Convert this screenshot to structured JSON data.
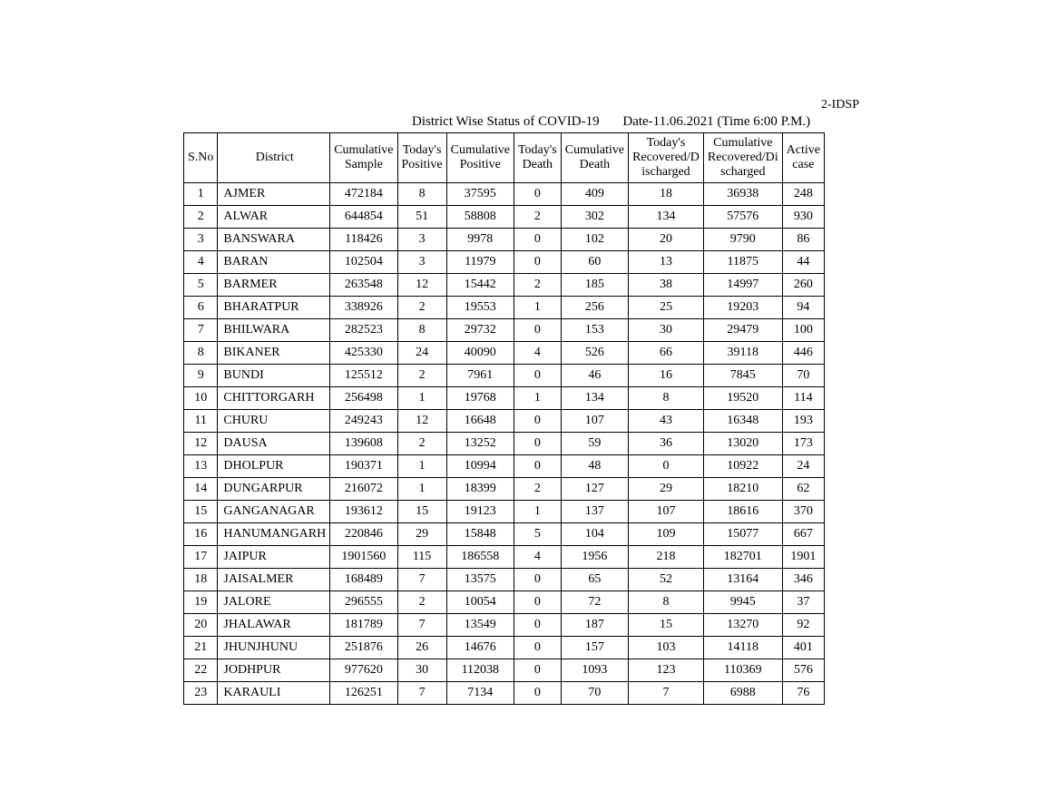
{
  "header": {
    "doc_id": "2-IDSP",
    "title": "District Wise Status of  COVID-19",
    "date_label": "Date-11.06.2021 (Time 6:00 P.M.)"
  },
  "table": {
    "columns": [
      "S.No",
      "District",
      "Cumulative Sample",
      "Today's Positive",
      "Cumulative Positive",
      "Today's Death",
      "Cumulative Death",
      "Today's Recovered/D ischarged",
      "Cumulative Recovered/Di scharged",
      "Active case"
    ],
    "rows": [
      [
        "1",
        "AJMER",
        "472184",
        "8",
        "37595",
        "0",
        "409",
        "18",
        "36938",
        "248"
      ],
      [
        "2",
        "ALWAR",
        "644854",
        "51",
        "58808",
        "2",
        "302",
        "134",
        "57576",
        "930"
      ],
      [
        "3",
        "BANSWARA",
        "118426",
        "3",
        "9978",
        "0",
        "102",
        "20",
        "9790",
        "86"
      ],
      [
        "4",
        "BARAN",
        "102504",
        "3",
        "11979",
        "0",
        "60",
        "13",
        "11875",
        "44"
      ],
      [
        "5",
        "BARMER",
        "263548",
        "12",
        "15442",
        "2",
        "185",
        "38",
        "14997",
        "260"
      ],
      [
        "6",
        "BHARATPUR",
        "338926",
        "2",
        "19553",
        "1",
        "256",
        "25",
        "19203",
        "94"
      ],
      [
        "7",
        "BHILWARA",
        "282523",
        "8",
        "29732",
        "0",
        "153",
        "30",
        "29479",
        "100"
      ],
      [
        "8",
        "BIKANER",
        "425330",
        "24",
        "40090",
        "4",
        "526",
        "66",
        "39118",
        "446"
      ],
      [
        "9",
        "BUNDI",
        "125512",
        "2",
        "7961",
        "0",
        "46",
        "16",
        "7845",
        "70"
      ],
      [
        "10",
        "CHITTORGARH",
        "256498",
        "1",
        "19768",
        "1",
        "134",
        "8",
        "19520",
        "114"
      ],
      [
        "11",
        "CHURU",
        "249243",
        "12",
        "16648",
        "0",
        "107",
        "43",
        "16348",
        "193"
      ],
      [
        "12",
        "DAUSA",
        "139608",
        "2",
        "13252",
        "0",
        "59",
        "36",
        "13020",
        "173"
      ],
      [
        "13",
        "DHOLPUR",
        "190371",
        "1",
        "10994",
        "0",
        "48",
        "0",
        "10922",
        "24"
      ],
      [
        "14",
        "DUNGARPUR",
        "216072",
        "1",
        "18399",
        "2",
        "127",
        "29",
        "18210",
        "62"
      ],
      [
        "15",
        "GANGANAGAR",
        "193612",
        "15",
        "19123",
        "1",
        "137",
        "107",
        "18616",
        "370"
      ],
      [
        "16",
        "HANUMANGARH",
        "220846",
        "29",
        "15848",
        "5",
        "104",
        "109",
        "15077",
        "667"
      ],
      [
        "17",
        "JAIPUR",
        "1901560",
        "115",
        "186558",
        "4",
        "1956",
        "218",
        "182701",
        "1901"
      ],
      [
        "18",
        "JAISALMER",
        "168489",
        "7",
        "13575",
        "0",
        "65",
        "52",
        "13164",
        "346"
      ],
      [
        "19",
        "JALORE",
        "296555",
        "2",
        "10054",
        "0",
        "72",
        "8",
        "9945",
        "37"
      ],
      [
        "20",
        "JHALAWAR",
        "181789",
        "7",
        "13549",
        "0",
        "187",
        "15",
        "13270",
        "92"
      ],
      [
        "21",
        "JHUNJHUNU",
        "251876",
        "26",
        "14676",
        "0",
        "157",
        "103",
        "14118",
        "401"
      ],
      [
        "22",
        "JODHPUR",
        "977620",
        "30",
        "112038",
        "0",
        "1093",
        "123",
        "110369",
        "576"
      ],
      [
        "23",
        "KARAULI",
        "126251",
        "7",
        "7134",
        "0",
        "70",
        "7",
        "6988",
        "76"
      ]
    ]
  }
}
